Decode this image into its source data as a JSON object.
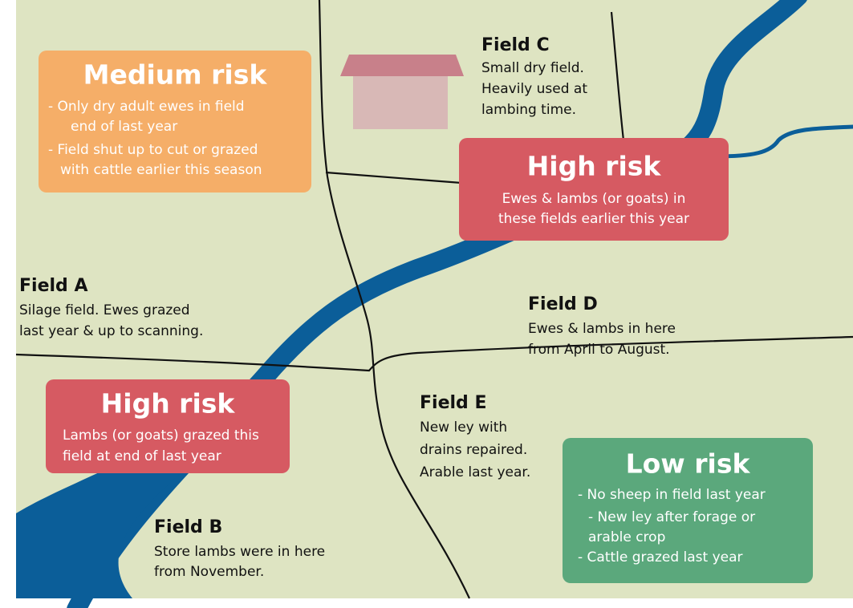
{
  "risk_boxes": [
    {
      "title": "Medium risk",
      "lines": [
        "- Only dry adult ewes in field",
        "end of last year",
        "- Field shut up to cut or grazed",
        "with cattle earlier this season"
      ]
    },
    {
      "title": "High risk",
      "lines": [
        "Ewes & lambs (or goats) in",
        "these fields earlier this year"
      ]
    },
    {
      "title": "High risk",
      "lines": [
        "Lambs (or goats) grazed this",
        "field at end of last year"
      ]
    },
    {
      "title": "Low risk",
      "lines": [
        "- No sheep in field last year",
        "- New ley after forage or",
        "arable crop",
        "- Cattle grazed last year"
      ]
    }
  ],
  "fields": [
    {
      "name": "Field C",
      "lines": [
        "Small dry field.",
        "Heavily used at",
        "lambing time."
      ]
    },
    {
      "name": "Field A",
      "lines": [
        "Silage field. Ewes grazed",
        "last year & up to scanning."
      ]
    },
    {
      "name": "Field D",
      "lines": [
        "Ewes & lambs in here",
        "from April to August."
      ]
    },
    {
      "name": "Field E",
      "lines": [
        "New ley with",
        "drains repaired.",
        "Arable last year."
      ]
    },
    {
      "name": "Field B",
      "lines": [
        "Store lambs were in here",
        "from November."
      ]
    }
  ]
}
